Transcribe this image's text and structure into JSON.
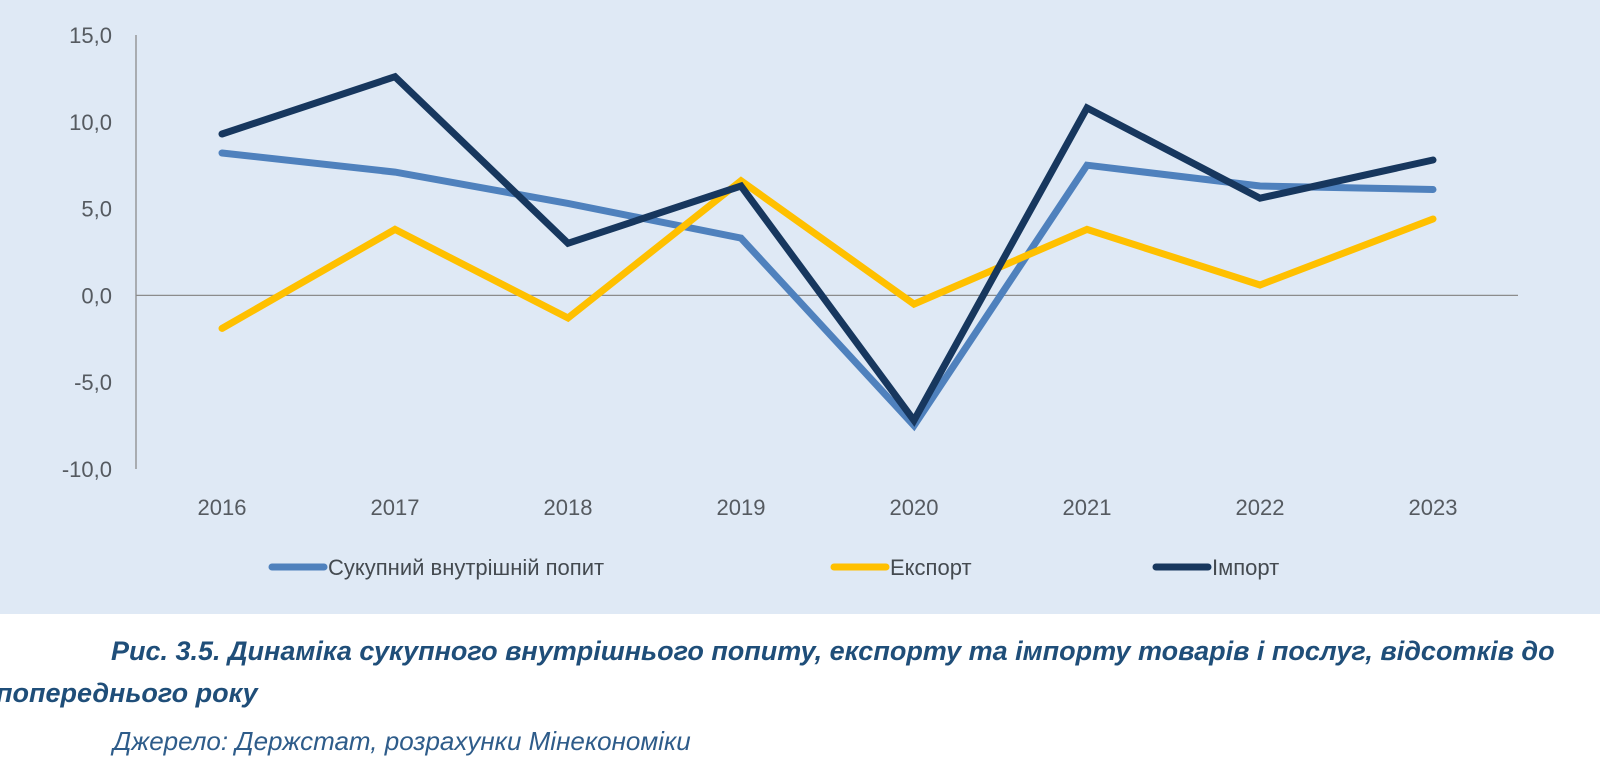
{
  "chart_data": {
    "type": "line",
    "categories": [
      "2016",
      "2017",
      "2018",
      "2019",
      "2020",
      "2021",
      "2022",
      "2023"
    ],
    "y_ticks": [
      "15,0",
      "10,0",
      "5,0",
      "0,0",
      "-5,0",
      "-10,0"
    ],
    "ylim": [
      -10,
      15
    ],
    "grid": false,
    "legend_position": "bottom",
    "series": [
      {
        "name": "Сукупний внутрішній попит",
        "color": "#4f81bd",
        "values": [
          8.2,
          7.1,
          5.3,
          3.3,
          -7.5,
          7.5,
          6.3,
          6.1
        ]
      },
      {
        "name": "Експорт",
        "color": "#ffc000",
        "values": [
          -1.9,
          3.8,
          -1.3,
          6.6,
          -0.5,
          3.8,
          0.6,
          4.4
        ]
      },
      {
        "name": "Імпорт",
        "color": "#17375e",
        "values": [
          9.3,
          12.6,
          3.0,
          6.3,
          -7.2,
          10.8,
          5.6,
          7.8
        ]
      }
    ]
  },
  "caption": {
    "title": "Рис. 3.5. Динаміка сукупного внутрішнього попиту, експорту та імпорту товарів і послуг, відсотків до попереднього року",
    "source": "Джерело: Держстат, розрахунки Мінекономіки"
  }
}
